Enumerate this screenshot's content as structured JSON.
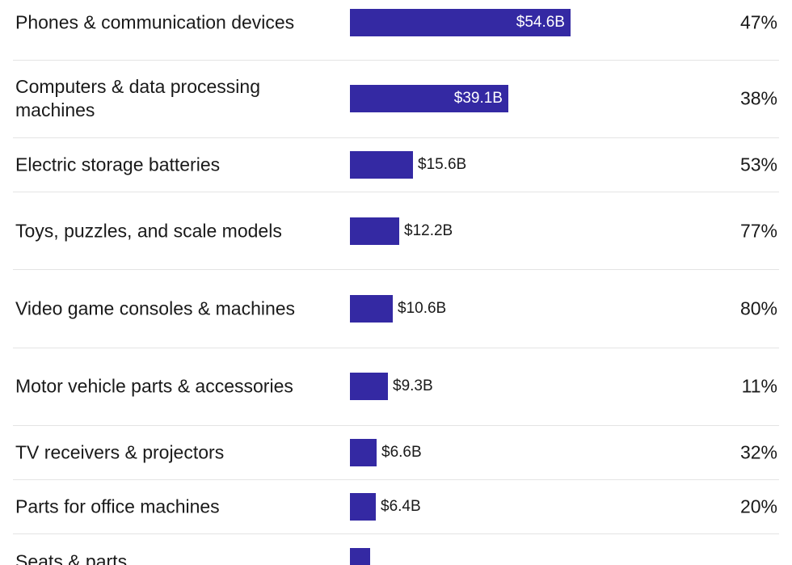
{
  "colors": {
    "bar": "#3429a3",
    "text": "#1a1a1a",
    "divider": "#e4e4e4"
  },
  "chart_data": {
    "type": "bar",
    "orientation": "horizontal",
    "value_unit": "$B",
    "categories": [
      "Phones & communication devices",
      "Computers & data processing machines",
      "Electric storage batteries",
      "Toys, puzzles, and scale models",
      "Video game consoles & machines",
      "Motor vehicle parts & accessories",
      "TV receivers & projectors",
      "Parts for office machines",
      "Seats & parts"
    ],
    "values": [
      54.6,
      39.1,
      15.6,
      12.2,
      10.6,
      9.3,
      6.6,
      6.4,
      5.0
    ],
    "value_labels": [
      "$54.6B",
      "$39.1B",
      "$15.6B",
      "$12.2B",
      "$10.6B",
      "$9.3B",
      "$6.6B",
      "$6.4B",
      ""
    ],
    "shares": [
      "47%",
      "38%",
      "53%",
      "77%",
      "80%",
      "11%",
      "32%",
      "20%",
      ""
    ],
    "xlim": [
      0,
      54.6
    ],
    "grid": false,
    "legend": "none"
  }
}
